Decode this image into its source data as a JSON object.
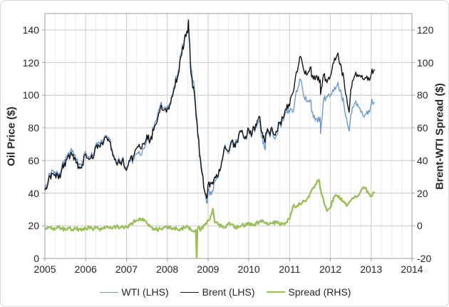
{
  "chart": {
    "left_axis": {
      "title": "Oil Price ($)",
      "min": 0,
      "max": 150,
      "tick_step": 20,
      "tick_labels": [
        "0",
        "20",
        "40",
        "60",
        "80",
        "100",
        "120",
        "140"
      ]
    },
    "right_axis": {
      "title": "Brent-WTI Spread ($)",
      "min": -20,
      "max": 130,
      "tick_step": 20,
      "tick_labels": [
        "-20",
        "0",
        "20",
        "40",
        "60",
        "80",
        "100",
        "120"
      ]
    },
    "x_axis": {
      "min": 2005,
      "max": 2014,
      "tick_labels": [
        "2005",
        "2006",
        "2007",
        "2008",
        "2009",
        "2010",
        "2011",
        "2012",
        "2013",
        "2014"
      ],
      "minor_divisions_per_year": 4
    },
    "colors": {
      "grid_major": "#c9c9c9",
      "grid_minor": "#ebebeb",
      "axis_line": "#9e9e9e",
      "text": "#262626",
      "frame": "#d6d6d6"
    },
    "legend_position": "bottom"
  },
  "chart_data": {
    "type": "line",
    "title": "",
    "series": [
      {
        "name": "WTI (LHS)",
        "key": "wti",
        "axis": "left",
        "color": "#6d9bcb",
        "line_width": 1.4,
        "render_noise": 2.6,
        "noise_seed": 0,
        "x": [
          2005.0,
          2005.083,
          2005.167,
          2005.25,
          2005.333,
          2005.417,
          2005.5,
          2005.583,
          2005.667,
          2005.75,
          2005.833,
          2005.917,
          2006.0,
          2006.083,
          2006.167,
          2006.25,
          2006.333,
          2006.417,
          2006.5,
          2006.583,
          2006.667,
          2006.75,
          2006.833,
          2006.917,
          2007.0,
          2007.083,
          2007.167,
          2007.25,
          2007.333,
          2007.417,
          2007.5,
          2007.583,
          2007.667,
          2007.75,
          2007.833,
          2007.917,
          2008.0,
          2008.083,
          2008.167,
          2008.25,
          2008.333,
          2008.417,
          2008.5,
          2008.52,
          2008.583,
          2008.667,
          2008.75,
          2008.833,
          2008.917,
          2008.98,
          2009.0,
          2009.083,
          2009.167,
          2009.25,
          2009.333,
          2009.417,
          2009.5,
          2009.583,
          2009.667,
          2009.75,
          2009.833,
          2009.917,
          2010.0,
          2010.083,
          2010.167,
          2010.25,
          2010.333,
          2010.4,
          2010.417,
          2010.5,
          2010.583,
          2010.667,
          2010.75,
          2010.833,
          2010.917,
          2011.0,
          2011.083,
          2011.167,
          2011.25,
          2011.333,
          2011.417,
          2011.5,
          2011.583,
          2011.667,
          2011.75,
          2011.76,
          2011.833,
          2011.917,
          2012.0,
          2012.083,
          2012.167,
          2012.25,
          2012.333,
          2012.417,
          2012.46,
          2012.5,
          2012.583,
          2012.667,
          2012.75,
          2012.833,
          2012.917,
          2013.0,
          2013.083
        ],
        "y": [
          43.5,
          48.0,
          54.2,
          53.0,
          49.8,
          56.3,
          58.7,
          65.0,
          65.5,
          62.3,
          58.3,
          59.4,
          65.5,
          61.6,
          62.9,
          69.7,
          70.9,
          70.9,
          75.5,
          73.1,
          63.9,
          59.1,
          59.4,
          62.0,
          54.6,
          59.3,
          60.6,
          64.0,
          63.5,
          67.5,
          74.2,
          72.4,
          79.9,
          86.2,
          94.6,
          91.7,
          93.0,
          95.4,
          105.6,
          112.6,
          125.4,
          133.9,
          138.0,
          145.3,
          116.7,
          103.9,
          76.7,
          57.4,
          41.0,
          33.9,
          41.7,
          39.2,
          48.0,
          49.8,
          59.2,
          69.7,
          64.1,
          71.1,
          69.5,
          75.8,
          78.1,
          74.3,
          78.2,
          76.4,
          81.2,
          84.5,
          73.7,
          66.5,
          75.4,
          76.4,
          76.6,
          75.3,
          81.9,
          84.3,
          89.2,
          89.4,
          89.5,
          102.9,
          110.0,
          101.3,
          96.3,
          97.2,
          86.3,
          85.6,
          86.4,
          76.5,
          97.1,
          98.6,
          100.3,
          102.3,
          106.2,
          103.3,
          94.7,
          82.4,
          78.0,
          87.9,
          94.1,
          94.6,
          89.6,
          86.6,
          88.2,
          94.8,
          95.8
        ]
      },
      {
        "name": "Brent (LHS)",
        "key": "brent",
        "axis": "left",
        "color": "#141414",
        "line_width": 1.4,
        "render_noise": 2.6,
        "noise_seed": 0,
        "x": [
          2005.0,
          2005.083,
          2005.167,
          2005.25,
          2005.333,
          2005.417,
          2005.5,
          2005.583,
          2005.667,
          2005.75,
          2005.833,
          2005.917,
          2006.0,
          2006.083,
          2006.167,
          2006.25,
          2006.333,
          2006.417,
          2006.5,
          2006.583,
          2006.667,
          2006.75,
          2006.833,
          2006.917,
          2007.0,
          2007.083,
          2007.167,
          2007.25,
          2007.333,
          2007.417,
          2007.5,
          2007.583,
          2007.667,
          2007.75,
          2007.833,
          2007.917,
          2008.0,
          2008.083,
          2008.167,
          2008.25,
          2008.333,
          2008.417,
          2008.5,
          2008.52,
          2008.583,
          2008.667,
          2008.75,
          2008.833,
          2008.917,
          2008.98,
          2009.0,
          2009.083,
          2009.167,
          2009.25,
          2009.333,
          2009.417,
          2009.5,
          2009.583,
          2009.667,
          2009.75,
          2009.833,
          2009.917,
          2010.0,
          2010.083,
          2010.167,
          2010.25,
          2010.333,
          2010.4,
          2010.417,
          2010.5,
          2010.583,
          2010.667,
          2010.75,
          2010.833,
          2010.917,
          2011.0,
          2011.083,
          2011.167,
          2011.25,
          2011.333,
          2011.417,
          2011.5,
          2011.583,
          2011.667,
          2011.75,
          2011.76,
          2011.833,
          2011.917,
          2012.0,
          2012.083,
          2012.167,
          2012.25,
          2012.333,
          2012.417,
          2012.46,
          2012.5,
          2012.583,
          2012.667,
          2012.75,
          2012.833,
          2012.917,
          2013.0,
          2013.083
        ],
        "y": [
          41.8,
          46.8,
          52.2,
          51.5,
          48.8,
          54.7,
          56.5,
          63.6,
          63.0,
          60.5,
          56.3,
          57.5,
          64.0,
          60.6,
          61.1,
          68.5,
          68.9,
          69.5,
          74.7,
          71.5,
          62.9,
          58.5,
          58.2,
          61.2,
          53.8,
          59.8,
          62.6,
          67.5,
          68.0,
          70.5,
          75.7,
          71.9,
          78.4,
          83.7,
          92.6,
          90.7,
          91.5,
          94.6,
          104.1,
          110.6,
          123.6,
          132.9,
          138.5,
          146.1,
          113.0,
          100.4,
          75.2,
          55.4,
          41.5,
          37.5,
          45.2,
          45.7,
          50.0,
          50.6,
          58.7,
          68.7,
          65.6,
          72.1,
          68.0,
          75.0,
          78.6,
          74.8,
          79.0,
          76.9,
          82.2,
          87.0,
          77.2,
          71.0,
          76.9,
          77.4,
          78.1,
          77.8,
          82.9,
          85.8,
          91.2,
          93.4,
          101.5,
          114.4,
          123.5,
          116.8,
          112.3,
          116.7,
          109.8,
          112.1,
          109.4,
          100.5,
          112.6,
          107.6,
          111.8,
          119.8,
          124.7,
          119.3,
          109.7,
          94.9,
          89.5,
          103.4,
          111.1,
          112.6,
          111.1,
          109.6,
          109.2,
          112.8,
          115.8
        ]
      },
      {
        "name": "Spread (RHS)",
        "key": "spread",
        "axis": "right",
        "color": "#9cbe5b",
        "line_width": 2.4,
        "render_noise": 1.2,
        "noise_seed": 9000,
        "x": [
          2005.0,
          2005.083,
          2005.167,
          2005.25,
          2005.333,
          2005.417,
          2005.5,
          2005.583,
          2005.667,
          2005.75,
          2005.833,
          2005.917,
          2006.0,
          2006.083,
          2006.167,
          2006.25,
          2006.333,
          2006.417,
          2006.5,
          2006.583,
          2006.667,
          2006.75,
          2006.833,
          2006.917,
          2007.0,
          2007.083,
          2007.167,
          2007.25,
          2007.333,
          2007.417,
          2007.5,
          2007.583,
          2007.667,
          2007.75,
          2007.833,
          2007.917,
          2008.0,
          2008.083,
          2008.167,
          2008.25,
          2008.333,
          2008.417,
          2008.5,
          2008.583,
          2008.667,
          2008.7,
          2008.72,
          2008.74,
          2008.75,
          2008.833,
          2008.917,
          2009.0,
          2009.083,
          2009.12,
          2009.167,
          2009.25,
          2009.333,
          2009.417,
          2009.5,
          2009.583,
          2009.667,
          2009.75,
          2009.833,
          2009.917,
          2010.0,
          2010.083,
          2010.167,
          2010.25,
          2010.333,
          2010.417,
          2010.5,
          2010.583,
          2010.667,
          2010.75,
          2010.833,
          2010.917,
          2011.0,
          2011.083,
          2011.167,
          2011.25,
          2011.333,
          2011.417,
          2011.5,
          2011.583,
          2011.667,
          2011.72,
          2011.75,
          2011.833,
          2011.917,
          2012.0,
          2012.083,
          2012.167,
          2012.25,
          2012.333,
          2012.417,
          2012.5,
          2012.583,
          2012.667,
          2012.75,
          2012.833,
          2012.917,
          2013.0,
          2013.083
        ],
        "y": [
          -1.8,
          -1.2,
          -2.0,
          -1.5,
          -1.0,
          -1.6,
          -2.2,
          -1.4,
          -2.5,
          -1.8,
          -2.0,
          -1.9,
          -1.5,
          -1.0,
          -1.8,
          -1.2,
          -2.0,
          -1.4,
          -0.8,
          -1.6,
          -1.0,
          -0.6,
          -1.2,
          -0.8,
          -0.8,
          0.5,
          2.0,
          3.5,
          4.5,
          3.0,
          1.5,
          -0.5,
          -1.5,
          -2.5,
          -2.0,
          -1.0,
          -1.5,
          -0.8,
          -1.5,
          -2.0,
          -1.8,
          -1.0,
          -0.5,
          -2.5,
          -3.5,
          -2.5,
          -19.5,
          -3.0,
          -1.5,
          -2.0,
          0.5,
          3.5,
          6.5,
          10.5,
          2.0,
          0.8,
          -0.5,
          -1.0,
          1.5,
          1.0,
          -1.5,
          -0.8,
          0.5,
          0.5,
          0.8,
          0.5,
          1.0,
          2.5,
          3.5,
          1.5,
          1.0,
          1.5,
          2.5,
          1.0,
          1.5,
          2.0,
          4.0,
          12.0,
          11.5,
          13.5,
          15.5,
          16.0,
          19.5,
          23.5,
          26.5,
          28.3,
          23.0,
          15.5,
          9.0,
          11.5,
          17.5,
          18.5,
          16.0,
          15.0,
          12.5,
          15.5,
          17.0,
          18.0,
          21.5,
          23.0,
          21.0,
          18.0,
          20.0
        ]
      }
    ]
  }
}
